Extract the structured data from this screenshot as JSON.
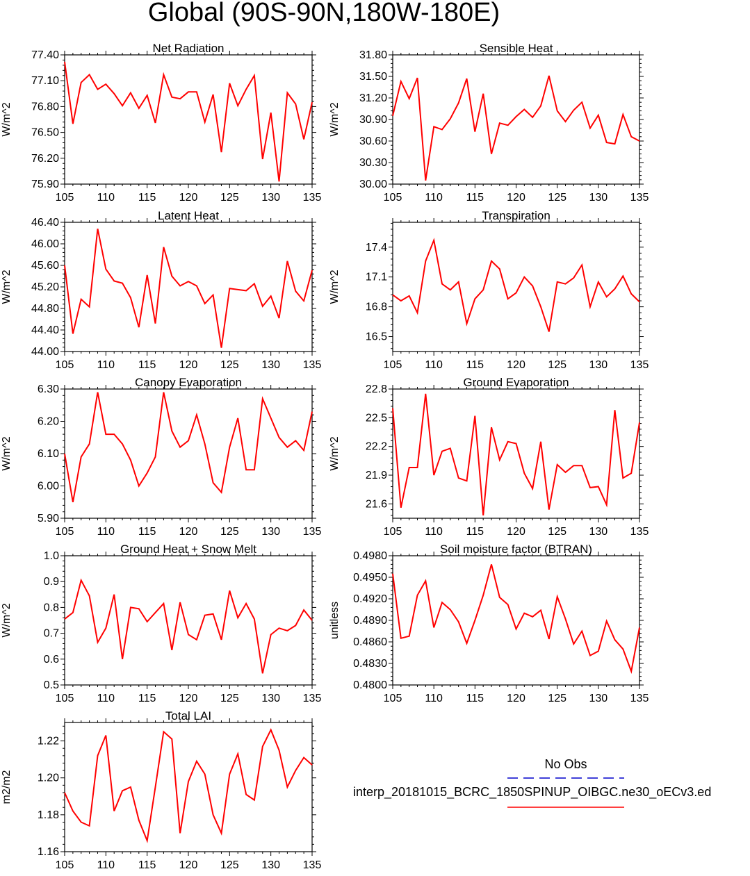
{
  "title": "Global (90S-90N,180W-180E)",
  "colors": {
    "series": "#ff0000",
    "obs": "#0000cc",
    "axis": "#000000"
  },
  "legend": {
    "title": "No Obs",
    "model_label": "interp_20181015_BCRC_1850SPINUP_OIBGC.ne30_oECv3.ed",
    "obs_style": "dashed",
    "model_style": "solid"
  },
  "chart_data": [
    {
      "type": "line",
      "title": "Net Radiation",
      "xlabel": "",
      "ylabel": "W/m^2",
      "xlim": [
        105,
        135
      ],
      "ylim": [
        75.9,
        77.4
      ],
      "xticks": [
        105,
        110,
        115,
        120,
        125,
        130,
        135
      ],
      "xtick_labels": [
        "105",
        "110",
        "115",
        "120",
        "125",
        "130",
        "135"
      ],
      "yticks": [
        75.9,
        76.2,
        76.5,
        76.8,
        77.1,
        77.4
      ],
      "ytick_labels": [
        "75.90",
        "76.20",
        "76.50",
        "76.80",
        "77.10",
        "77.40"
      ],
      "x": [
        105,
        106,
        107,
        108,
        109,
        110,
        111,
        112,
        113,
        114,
        115,
        116,
        117,
        118,
        119,
        120,
        121,
        122,
        123,
        124,
        125,
        126,
        127,
        128,
        129,
        130,
        131,
        132,
        133,
        134,
        135
      ],
      "series": [
        {
          "values": [
            77.32,
            76.6,
            77.08,
            77.17,
            77.0,
            77.06,
            76.95,
            76.81,
            76.96,
            76.78,
            76.93,
            76.61,
            77.17,
            76.91,
            76.89,
            76.97,
            76.97,
            76.62,
            76.94,
            76.27,
            77.07,
            76.81,
            77.0,
            77.16,
            76.19,
            76.73,
            75.93,
            76.96,
            76.83,
            76.42,
            76.85
          ]
        }
      ]
    },
    {
      "type": "line",
      "title": "Sensible Heat",
      "xlabel": "",
      "ylabel": "W/m^2",
      "xlim": [
        105,
        135
      ],
      "ylim": [
        30.0,
        31.8
      ],
      "xticks": [
        105,
        110,
        115,
        120,
        125,
        130,
        135
      ],
      "xtick_labels": [
        "105",
        "110",
        "115",
        "120",
        "125",
        "130",
        "135"
      ],
      "yticks": [
        30.0,
        30.3,
        30.6,
        30.9,
        31.2,
        31.5,
        31.8
      ],
      "ytick_labels": [
        "30.00",
        "30.30",
        "30.60",
        "30.90",
        "31.20",
        "31.50",
        "31.80"
      ],
      "x": [
        105,
        106,
        107,
        108,
        109,
        110,
        111,
        112,
        113,
        114,
        115,
        116,
        117,
        118,
        119,
        120,
        121,
        122,
        123,
        124,
        125,
        126,
        127,
        128,
        129,
        130,
        131,
        132,
        133,
        134,
        135
      ],
      "series": [
        {
          "values": [
            30.95,
            31.43,
            31.19,
            31.48,
            30.05,
            30.8,
            30.76,
            30.91,
            31.13,
            31.47,
            30.73,
            31.26,
            30.42,
            30.85,
            30.82,
            30.94,
            31.04,
            30.93,
            31.09,
            31.51,
            31.02,
            30.87,
            31.03,
            31.14,
            30.78,
            30.96,
            30.58,
            30.56,
            30.97,
            30.66,
            30.6
          ]
        }
      ]
    },
    {
      "type": "line",
      "title": "Latent Heat",
      "xlabel": "",
      "ylabel": "W/m^2",
      "xlim": [
        105,
        135
      ],
      "ylim": [
        44.0,
        46.4
      ],
      "xticks": [
        105,
        110,
        115,
        120,
        125,
        130,
        135
      ],
      "xtick_labels": [
        "105",
        "110",
        "115",
        "120",
        "125",
        "130",
        "135"
      ],
      "yticks": [
        44.0,
        44.4,
        44.8,
        45.2,
        45.6,
        46.0,
        46.4
      ],
      "ytick_labels": [
        "44.00",
        "44.40",
        "44.80",
        "45.20",
        "45.60",
        "46.00",
        "46.40"
      ],
      "x": [
        105,
        106,
        107,
        108,
        109,
        110,
        111,
        112,
        113,
        114,
        115,
        116,
        117,
        118,
        119,
        120,
        121,
        122,
        123,
        124,
        125,
        126,
        127,
        128,
        129,
        130,
        131,
        132,
        133,
        134,
        135
      ],
      "series": [
        {
          "values": [
            45.6,
            44.33,
            44.97,
            44.83,
            46.28,
            45.53,
            45.31,
            45.27,
            45.0,
            44.45,
            45.42,
            44.52,
            45.94,
            45.4,
            45.22,
            45.3,
            45.22,
            44.89,
            45.05,
            44.07,
            45.17,
            45.15,
            45.13,
            45.26,
            44.84,
            45.03,
            44.62,
            45.68,
            45.12,
            44.94,
            45.51
          ]
        }
      ]
    },
    {
      "type": "line",
      "title": "Transpiration",
      "xlabel": "",
      "ylabel": "W/m^2",
      "xlim": [
        105,
        135
      ],
      "ylim": [
        16.35,
        17.65
      ],
      "xticks": [
        105,
        110,
        115,
        120,
        125,
        130,
        135
      ],
      "xtick_labels": [
        "105",
        "110",
        "115",
        "120",
        "125",
        "130",
        "135"
      ],
      "yticks": [
        16.5,
        16.8,
        17.1,
        17.4
      ],
      "ytick_labels": [
        "16.5",
        "16.8",
        "17.1",
        "17.4"
      ],
      "x": [
        105,
        106,
        107,
        108,
        109,
        110,
        111,
        112,
        113,
        114,
        115,
        116,
        117,
        118,
        119,
        120,
        121,
        122,
        123,
        124,
        125,
        126,
        127,
        128,
        129,
        130,
        131,
        132,
        133,
        134,
        135
      ],
      "series": [
        {
          "values": [
            16.92,
            16.86,
            16.91,
            16.74,
            17.26,
            17.47,
            17.03,
            16.97,
            17.05,
            16.63,
            16.88,
            16.97,
            17.26,
            17.18,
            16.88,
            16.94,
            17.1,
            17.01,
            16.8,
            16.55,
            17.05,
            17.03,
            17.09,
            17.22,
            16.8,
            17.05,
            16.9,
            16.98,
            17.11,
            16.93,
            16.85
          ]
        }
      ]
    },
    {
      "type": "line",
      "title": "Canopy Evaporation",
      "xlabel": "",
      "ylabel": "W/m^2",
      "xlim": [
        105,
        135
      ],
      "ylim": [
        5.9,
        6.3
      ],
      "xticks": [
        105,
        110,
        115,
        120,
        125,
        130,
        135
      ],
      "xtick_labels": [
        "105",
        "110",
        "115",
        "120",
        "125",
        "130",
        "135"
      ],
      "yticks": [
        5.9,
        6.0,
        6.1,
        6.2,
        6.3
      ],
      "ytick_labels": [
        "5.90",
        "6.00",
        "6.10",
        "6.20",
        "6.30"
      ],
      "x": [
        105,
        106,
        107,
        108,
        109,
        110,
        111,
        112,
        113,
        114,
        115,
        116,
        117,
        118,
        119,
        120,
        121,
        122,
        123,
        124,
        125,
        126,
        127,
        128,
        129,
        130,
        131,
        132,
        133,
        134,
        135
      ],
      "series": [
        {
          "values": [
            6.1,
            5.95,
            6.09,
            6.13,
            6.29,
            6.16,
            6.16,
            6.13,
            6.08,
            6.0,
            6.04,
            6.09,
            6.29,
            6.17,
            6.12,
            6.14,
            6.22,
            6.13,
            6.01,
            5.98,
            6.12,
            6.21,
            6.05,
            6.05,
            6.27,
            6.21,
            6.15,
            6.12,
            6.14,
            6.11,
            6.23
          ]
        }
      ]
    },
    {
      "type": "line",
      "title": "Ground Evaporation",
      "xlabel": "",
      "ylabel": "W/m^2",
      "xlim": [
        105,
        135
      ],
      "ylim": [
        21.45,
        22.8
      ],
      "xticks": [
        105,
        110,
        115,
        120,
        125,
        130,
        135
      ],
      "xtick_labels": [
        "105",
        "110",
        "115",
        "120",
        "125",
        "130",
        "135"
      ],
      "yticks": [
        21.6,
        21.9,
        22.2,
        22.5,
        22.8
      ],
      "ytick_labels": [
        "21.6",
        "21.9",
        "22.2",
        "22.5",
        "22.8"
      ],
      "x": [
        105,
        106,
        107,
        108,
        109,
        110,
        111,
        112,
        113,
        114,
        115,
        116,
        117,
        118,
        119,
        120,
        121,
        122,
        123,
        124,
        125,
        126,
        127,
        128,
        129,
        130,
        131,
        132,
        133,
        134,
        135
      ],
      "series": [
        {
          "values": [
            22.6,
            21.56,
            21.98,
            21.98,
            22.75,
            21.9,
            22.15,
            22.18,
            21.87,
            21.84,
            22.52,
            21.48,
            22.4,
            22.06,
            22.25,
            22.23,
            21.92,
            21.76,
            22.25,
            21.54,
            22.01,
            21.93,
            22.0,
            22.0,
            21.77,
            21.78,
            21.59,
            22.58,
            21.87,
            21.92,
            22.45
          ]
        }
      ]
    },
    {
      "type": "line",
      "title": "Ground Heat + Snow Melt",
      "xlabel": "",
      "ylabel": "W/m^2",
      "xlim": [
        105,
        135
      ],
      "ylim": [
        0.5,
        1.0
      ],
      "xticks": [
        105,
        110,
        115,
        120,
        125,
        130,
        135
      ],
      "xtick_labels": [
        "105",
        "110",
        "115",
        "120",
        "125",
        "130",
        "135"
      ],
      "yticks": [
        0.5,
        0.6,
        0.7,
        0.8,
        0.9,
        1.0
      ],
      "ytick_labels": [
        "0.5",
        "0.6",
        "0.7",
        "0.8",
        "0.9",
        "1.0"
      ],
      "x": [
        105,
        106,
        107,
        108,
        109,
        110,
        111,
        112,
        113,
        114,
        115,
        116,
        117,
        118,
        119,
        120,
        121,
        122,
        123,
        124,
        125,
        126,
        127,
        128,
        129,
        130,
        131,
        132,
        133,
        134,
        135
      ],
      "series": [
        {
          "values": [
            0.755,
            0.78,
            0.905,
            0.845,
            0.665,
            0.72,
            0.85,
            0.6,
            0.8,
            0.795,
            0.745,
            0.78,
            0.815,
            0.635,
            0.82,
            0.695,
            0.675,
            0.77,
            0.775,
            0.675,
            0.865,
            0.76,
            0.815,
            0.755,
            0.545,
            0.695,
            0.72,
            0.71,
            0.73,
            0.79,
            0.75
          ]
        }
      ]
    },
    {
      "type": "line",
      "title": "Soil moisture factor (BTRAN)",
      "xlabel": "",
      "ylabel": "unitless",
      "xlim": [
        105,
        135
      ],
      "ylim": [
        0.48,
        0.498
      ],
      "xticks": [
        105,
        110,
        115,
        120,
        125,
        130,
        135
      ],
      "xtick_labels": [
        "105",
        "110",
        "115",
        "120",
        "125",
        "130",
        "135"
      ],
      "yticks": [
        0.48,
        0.483,
        0.486,
        0.489,
        0.492,
        0.495,
        0.498
      ],
      "ytick_labels": [
        "0.4800",
        "0.4830",
        "0.4860",
        "0.4890",
        "0.4920",
        "0.4950",
        "0.4980"
      ],
      "x": [
        105,
        106,
        107,
        108,
        109,
        110,
        111,
        112,
        113,
        114,
        115,
        116,
        117,
        118,
        119,
        120,
        121,
        122,
        123,
        124,
        125,
        126,
        127,
        128,
        129,
        130,
        131,
        132,
        133,
        134,
        135
      ],
      "series": [
        {
          "values": [
            0.4955,
            0.4865,
            0.4868,
            0.4925,
            0.4945,
            0.488,
            0.4915,
            0.4905,
            0.4888,
            0.4858,
            0.489,
            0.4925,
            0.4968,
            0.4922,
            0.4912,
            0.4878,
            0.49,
            0.4895,
            0.4904,
            0.4864,
            0.4923,
            0.4892,
            0.4857,
            0.4875,
            0.4841,
            0.4847,
            0.4889,
            0.4863,
            0.485,
            0.4819,
            0.488
          ]
        }
      ]
    },
    {
      "type": "line",
      "title": "Total LAI",
      "xlabel": "",
      "ylabel": "m2/m2",
      "xlim": [
        105,
        135
      ],
      "ylim": [
        1.16,
        1.23
      ],
      "xticks": [
        105,
        110,
        115,
        120,
        125,
        130,
        135
      ],
      "xtick_labels": [
        "105",
        "110",
        "115",
        "120",
        "125",
        "130",
        "135"
      ],
      "yticks": [
        1.16,
        1.18,
        1.2,
        1.22
      ],
      "ytick_labels": [
        "1.16",
        "1.18",
        "1.20",
        "1.22"
      ],
      "x": [
        105,
        106,
        107,
        108,
        109,
        110,
        111,
        112,
        113,
        114,
        115,
        116,
        117,
        118,
        119,
        120,
        121,
        122,
        123,
        124,
        125,
        126,
        127,
        128,
        129,
        130,
        131,
        132,
        133,
        134,
        135
      ],
      "series": [
        {
          "values": [
            1.192,
            1.182,
            1.176,
            1.174,
            1.212,
            1.223,
            1.182,
            1.193,
            1.195,
            1.177,
            1.166,
            1.195,
            1.225,
            1.221,
            1.17,
            1.198,
            1.209,
            1.202,
            1.18,
            1.17,
            1.202,
            1.213,
            1.191,
            1.188,
            1.217,
            1.226,
            1.215,
            1.195,
            1.204,
            1.211,
            1.207
          ]
        }
      ]
    }
  ]
}
